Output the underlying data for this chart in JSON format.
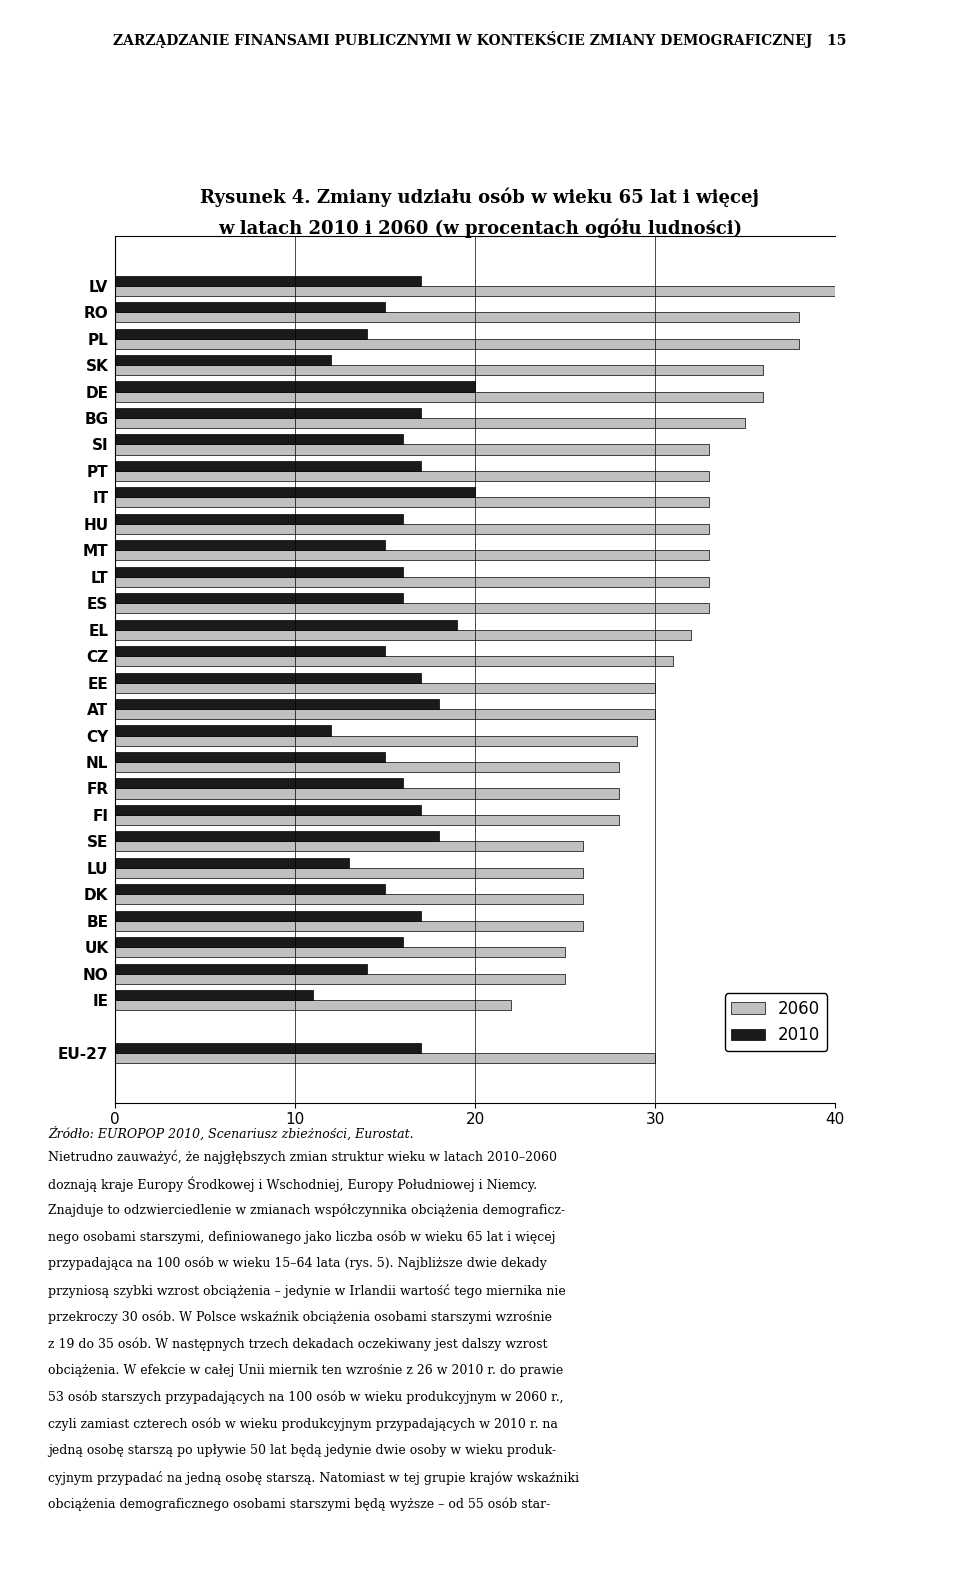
{
  "title_line1": "Rysunek 4. Zmiany udziału osób w wieku 65 lat i więcej",
  "title_line2": "w latach 2010 i 2060 (w procentach ogółu ludności)",
  "header": "ZARZĄDZANIE FINANSAMI PUBLICZNYMI W KONTEKŚCIE ZMIANY DEMOGRAFICZNEJ   15",
  "footer": "Źródło: EUROPOP 2010, Scenariusz zbieżności, Eurostat.",
  "body_text": "Nietrudno zauważyć, że najgłębszych zmian struktur wieku w latach 2010–2060\ndoznają kraje Europy Środkowej i Wschodniej, Europy Południowej i Niemcy.\nZnajduje to odzwierciedlenie w zmianach współczynnika obciążenia demograficz-\nnego osobami starszymi, definiowanego jako liczba osób w wieku 65 lat i więcej\nprzypadająca na 100 osób w wieku 15–64 lata (rys. 5). Najbliższe dwie dekady\nprzyniosą szybki wzrost obciążenia – jedynie w Irlandii wartość tego miernika nie\nprzekroczy 30 osób. W Polsce wskaźnik obciążenia osobami starszymi wzrośnie\nz 19 do 35 osób. W następnych trzech dekadach oczekiwany jest dalszy wzrost\nobciążenia. W efekcie w całej Unii miernik ten wzrośnie z 26 w 2010 r. do prawie\n53 osób starszych przypadających na 100 osób w wieku produkcyjnym w 2060 r.,\nczyli zamiast czterech osób w wieku produkcyjnym przypadających w 2010 r. na\njedną osobę starszą po upływie 50 lat będą jedynie dwie osoby w wieku produk-\ncyjnym przypadać na jedną osobę starszą. Natomiast w tej grupie krajów wskaźniki\nobciążenia demograficznego osobami starszymi będą wyższe – od 55 osób star-",
  "countries": [
    "LV",
    "RO",
    "PL",
    "SK",
    "DE",
    "BG",
    "SI",
    "PT",
    "IT",
    "HU",
    "MT",
    "LT",
    "ES",
    "EL",
    "CZ",
    "EE",
    "AT",
    "CY",
    "NL",
    "FR",
    "FI",
    "SE",
    "LU",
    "DK",
    "BE",
    "UK",
    "NO",
    "IE",
    "",
    "EU-27"
  ],
  "values_2060": [
    40,
    38,
    38,
    36,
    36,
    35,
    33,
    33,
    33,
    33,
    33,
    33,
    33,
    32,
    31,
    30,
    30,
    29,
    28,
    28,
    28,
    26,
    26,
    26,
    26,
    25,
    25,
    22,
    0,
    30
  ],
  "values_2010": [
    17,
    15,
    14,
    12,
    20,
    17,
    16,
    17,
    20,
    16,
    15,
    16,
    16,
    19,
    15,
    17,
    18,
    12,
    15,
    16,
    17,
    18,
    13,
    15,
    17,
    16,
    14,
    11,
    0,
    17
  ],
  "xlim": [
    0,
    40
  ],
  "xticks": [
    0,
    10,
    20,
    30,
    40
  ],
  "color_2060": "#c0c0c0",
  "color_2010": "#1a1a1a",
  "bar_height": 0.38,
  "legend_2060": "2060",
  "legend_2010": "2010"
}
